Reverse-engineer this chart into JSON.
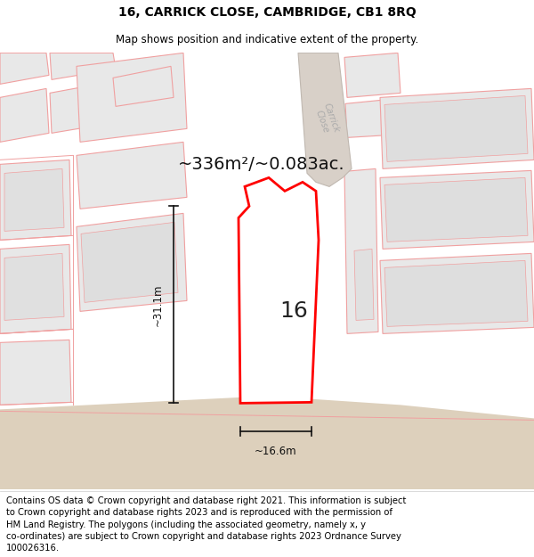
{
  "title_line1": "16, CARRICK CLOSE, CAMBRIDGE, CB1 8RQ",
  "title_line2": "Map shows position and indicative extent of the property.",
  "area_label": "~336m²/~0.083ac.",
  "width_label": "~16.6m",
  "height_label": "~31.1m",
  "property_number": "16",
  "footer_text": "Contains OS data © Crown copyright and database right 2021. This information is subject\nto Crown copyright and database rights 2023 and is reproduced with the permission of\nHM Land Registry. The polygons (including the associated geometry, namely x, y\nco-ordinates) are subject to Crown copyright and database rights 2023 Ordnance Survey\n100026316.",
  "map_bg": "#ece8e3",
  "road_bg": "#e0d5c8",
  "building_fill": "#e8e8e8",
  "building_edge": "#f0a0a0",
  "property_edge": "#ff0000",
  "dim_line_color": "#111111",
  "road_label_color": "#aaaaaa",
  "title_fontsize": 10,
  "subtitle_fontsize": 8.5,
  "footer_fontsize": 7.2,
  "area_fontsize": 14,
  "number_fontsize": 18,
  "dim_fontsize": 8.5,
  "road_label_fontsize": 7
}
